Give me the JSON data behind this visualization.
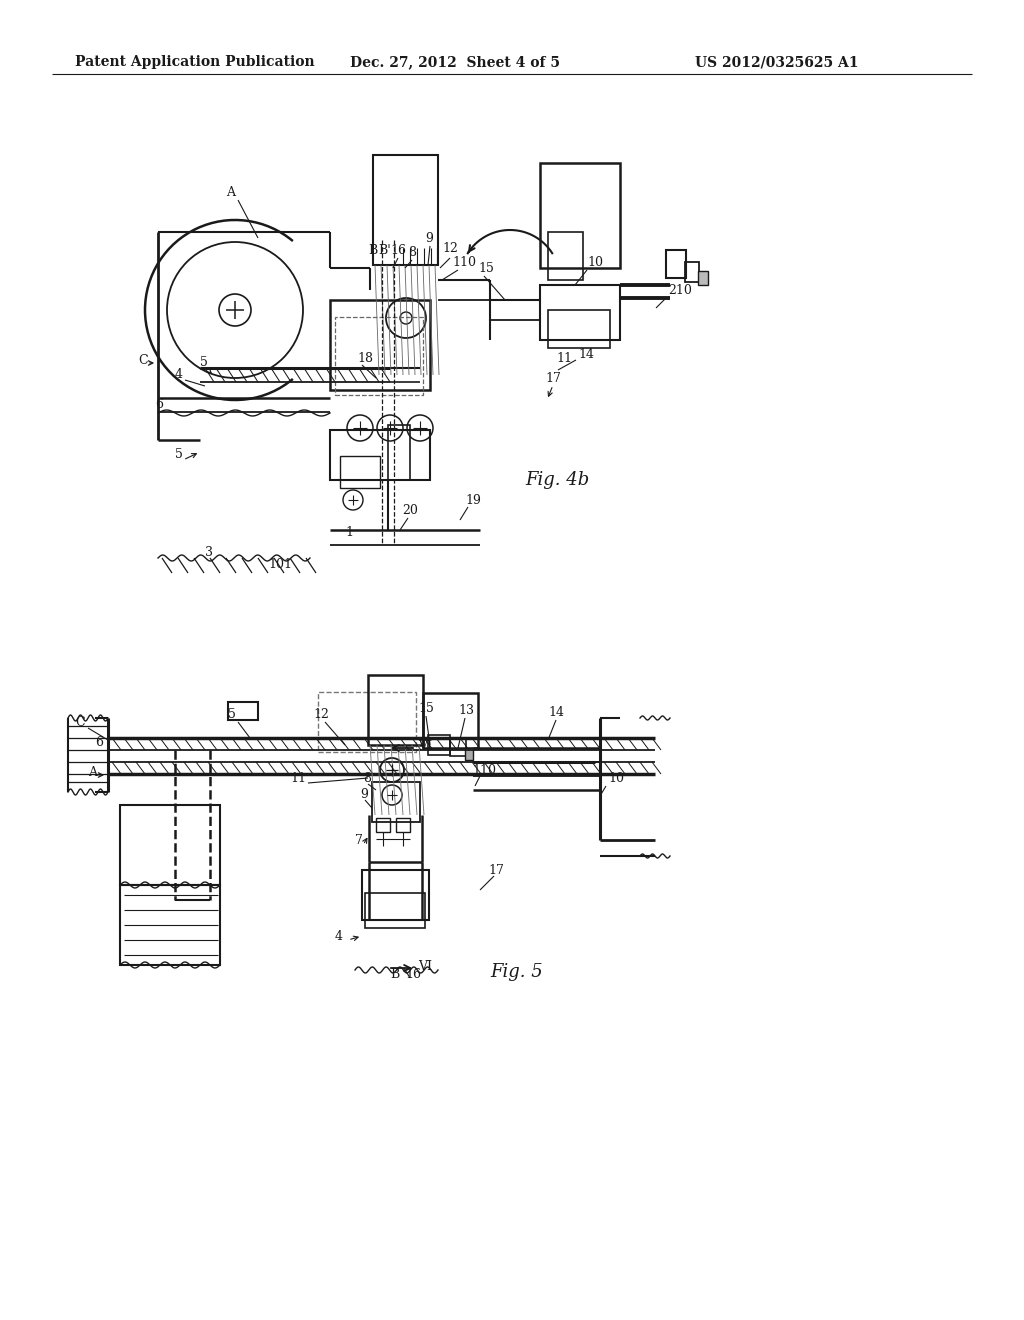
{
  "bg_color": "#ffffff",
  "header_left": "Patent Application Publication",
  "header_center": "Dec. 27, 2012  Sheet 4 of 5",
  "header_right": "US 2012/0325625 A1",
  "fig4b_label": "Fig. 4b",
  "fig5_label": "Fig. 5",
  "line_color": "#1a1a1a",
  "label_fs": 9,
  "header_fs": 10
}
